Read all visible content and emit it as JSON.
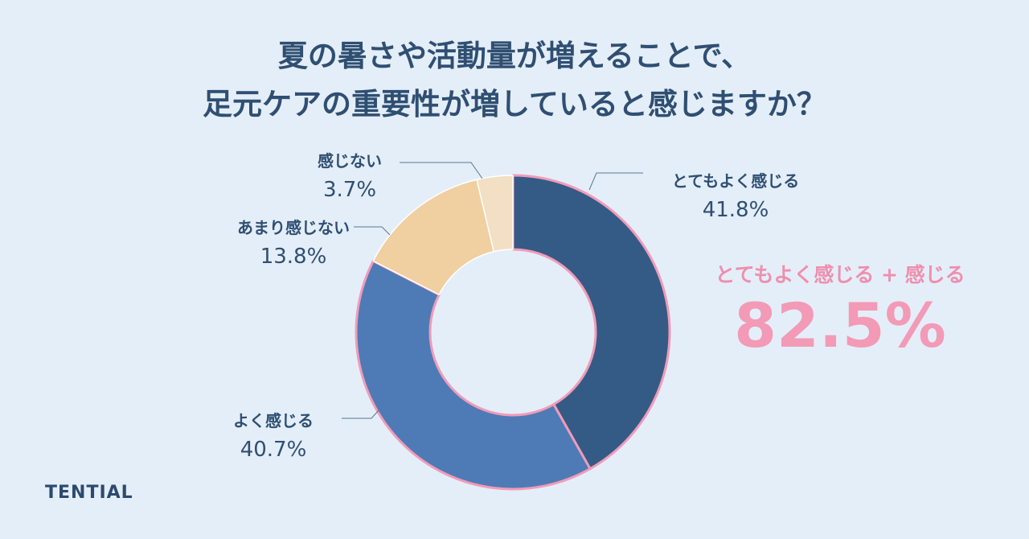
{
  "title": {
    "line1": "夏の暑さや活動量が増えることで、",
    "line2": "足元ケアの重要性が増していると感じますか？"
  },
  "chart_data": {
    "type": "pie",
    "donut": true,
    "categories": [
      "とてもよく感じる",
      "よく感じる",
      "あまり感じない",
      "感じない"
    ],
    "values": [
      41.8,
      40.7,
      13.8,
      3.7
    ],
    "value_labels": [
      "41.8%",
      "40.7%",
      "13.8%",
      "3.7%"
    ],
    "colors": [
      "#345b86",
      "#4e7bb5",
      "#f0cfa0",
      "#f3dfc4"
    ],
    "outline_color": "#f19bb9",
    "legend": "none"
  },
  "summary": {
    "label": "とてもよく感じる + 感じる",
    "value": "82.5%",
    "color": "#f29ab6"
  },
  "brand": "TENTIAL"
}
